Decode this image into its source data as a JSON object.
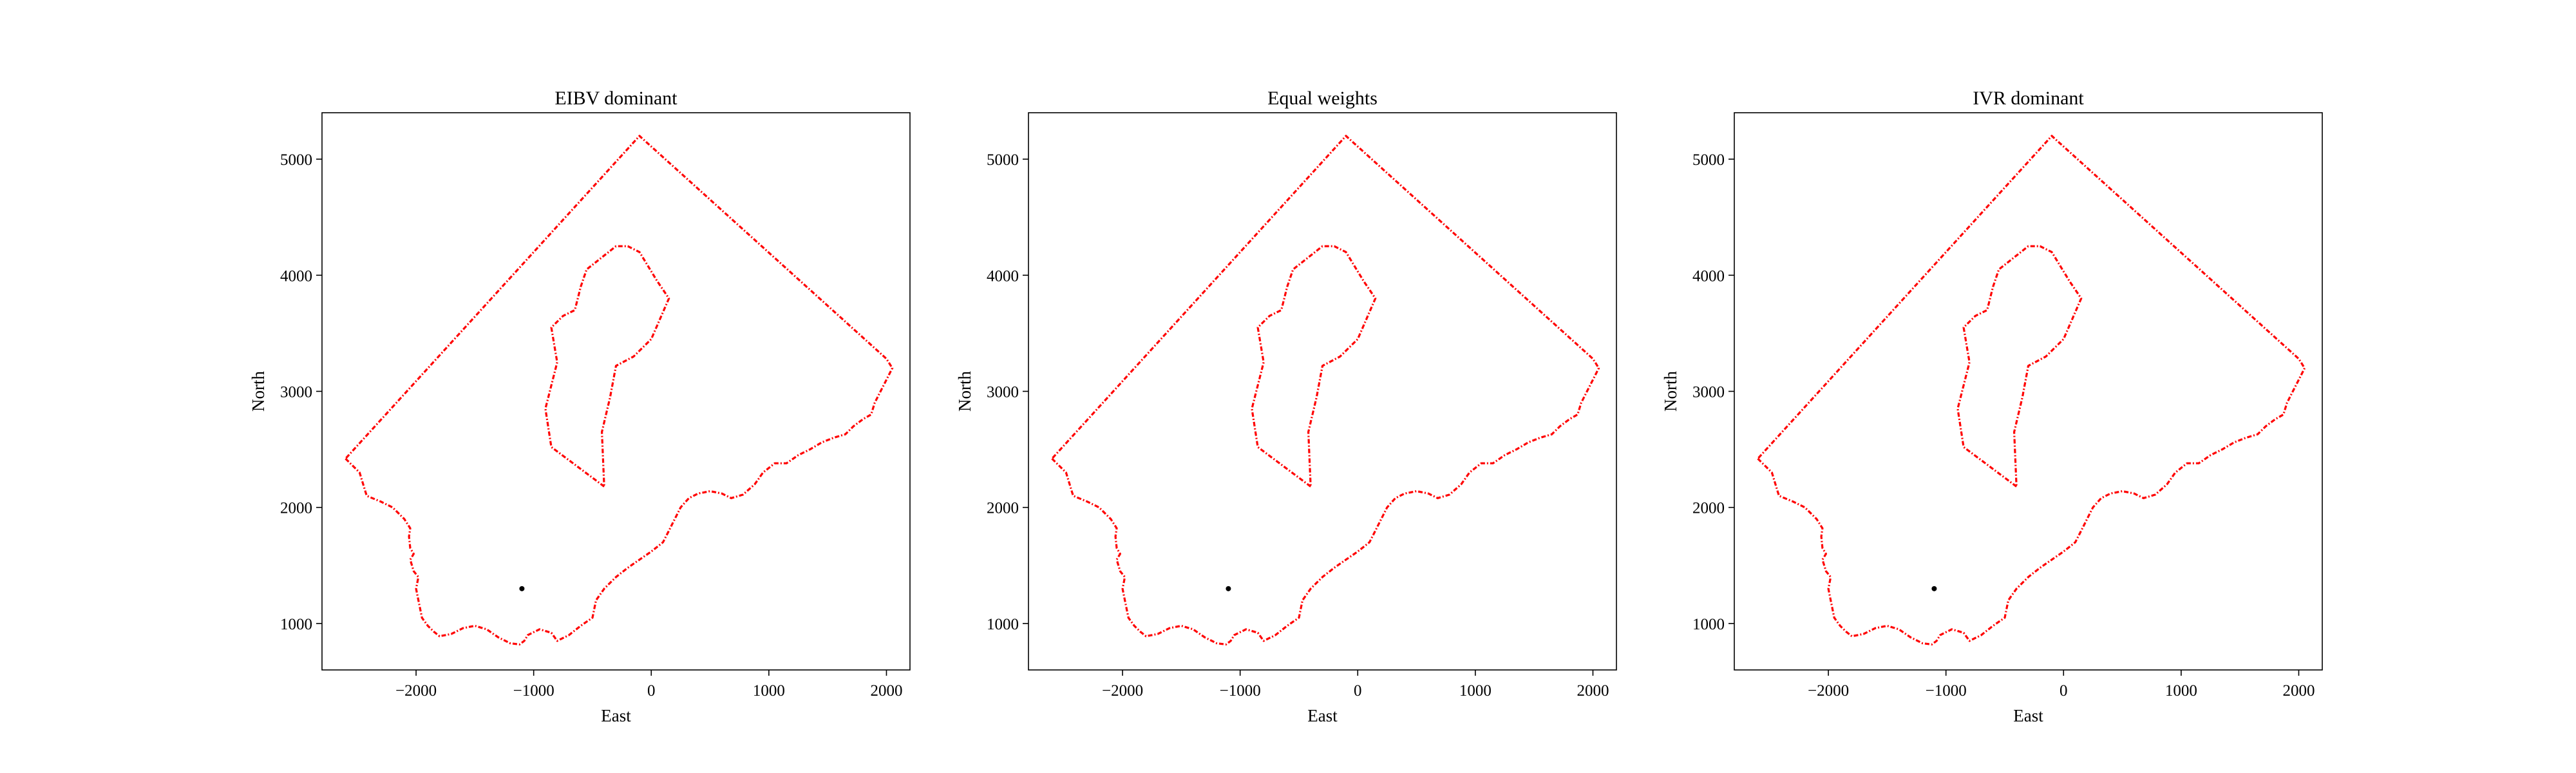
{
  "chart_data": [
    {
      "type": "line",
      "title": "EIBV dominant",
      "xlabel": "East",
      "ylabel": "North",
      "xlim": [
        -2800,
        2200
      ],
      "ylim": [
        600,
        5400
      ],
      "xticks": [
        -2000,
        -1000,
        0,
        1000,
        2000
      ],
      "xtick_labels": [
        "−2000",
        "−1000",
        "0",
        "1000",
        "2000"
      ],
      "yticks": [
        1000,
        2000,
        3000,
        4000,
        5000
      ],
      "ytick_labels": [
        "1000",
        "2000",
        "3000",
        "4000",
        "5000"
      ],
      "grid": false,
      "point": {
        "x": -1100,
        "y": 1300
      }
    },
    {
      "type": "line",
      "title": "Equal weights",
      "xlabel": "East",
      "ylabel": "North",
      "xlim": [
        -2800,
        2200
      ],
      "ylim": [
        600,
        5400
      ],
      "xticks": [
        -2000,
        -1000,
        0,
        1000,
        2000
      ],
      "xtick_labels": [
        "−2000",
        "−1000",
        "0",
        "1000",
        "2000"
      ],
      "yticks": [
        1000,
        2000,
        3000,
        4000,
        5000
      ],
      "ytick_labels": [
        "1000",
        "2000",
        "3000",
        "4000",
        "5000"
      ],
      "grid": false,
      "point": {
        "x": -1100,
        "y": 1300
      }
    },
    {
      "type": "line",
      "title": "IVR dominant",
      "xlabel": "East",
      "ylabel": "North",
      "xlim": [
        -2800,
        2200
      ],
      "ylim": [
        600,
        5400
      ],
      "xticks": [
        -2000,
        -1000,
        0,
        1000,
        2000
      ],
      "xtick_labels": [
        "−2000",
        "−1000",
        "0",
        "1000",
        "2000"
      ],
      "yticks": [
        1000,
        2000,
        3000,
        4000,
        5000
      ],
      "ytick_labels": [
        "1000",
        "2000",
        "3000",
        "4000",
        "5000"
      ],
      "grid": false,
      "point": {
        "x": -1100,
        "y": 1300
      }
    }
  ],
  "shared_boundaries": {
    "outer": [
      [
        -2600,
        2420
      ],
      [
        -2480,
        2300
      ],
      [
        -2450,
        2200
      ],
      [
        -2420,
        2100
      ],
      [
        -2300,
        2050
      ],
      [
        -2200,
        2000
      ],
      [
        -2150,
        1950
      ],
      [
        -2100,
        1900
      ],
      [
        -2050,
        1820
      ],
      [
        -2060,
        1750
      ],
      [
        -2050,
        1650
      ],
      [
        -2020,
        1600
      ],
      [
        -2050,
        1550
      ],
      [
        -2020,
        1450
      ],
      [
        -1980,
        1400
      ],
      [
        -2000,
        1300
      ],
      [
        -1980,
        1200
      ],
      [
        -1950,
        1050
      ],
      [
        -1900,
        980
      ],
      [
        -1850,
        930
      ],
      [
        -1800,
        890
      ],
      [
        -1700,
        910
      ],
      [
        -1600,
        960
      ],
      [
        -1500,
        980
      ],
      [
        -1400,
        950
      ],
      [
        -1300,
        880
      ],
      [
        -1200,
        830
      ],
      [
        -1120,
        820
      ],
      [
        -1080,
        850
      ],
      [
        -1050,
        900
      ],
      [
        -950,
        950
      ],
      [
        -850,
        920
      ],
      [
        -800,
        850
      ],
      [
        -700,
        900
      ],
      [
        -600,
        980
      ],
      [
        -500,
        1050
      ],
      [
        -470,
        1200
      ],
      [
        -400,
        1300
      ],
      [
        -300,
        1400
      ],
      [
        -200,
        1480
      ],
      [
        -100,
        1550
      ],
      [
        0,
        1620
      ],
      [
        100,
        1700
      ],
      [
        150,
        1800
      ],
      [
        200,
        1900
      ],
      [
        250,
        2000
      ],
      [
        320,
        2080
      ],
      [
        400,
        2120
      ],
      [
        500,
        2140
      ],
      [
        600,
        2120
      ],
      [
        680,
        2080
      ],
      [
        780,
        2110
      ],
      [
        880,
        2200
      ],
      [
        950,
        2300
      ],
      [
        1050,
        2380
      ],
      [
        1150,
        2380
      ],
      [
        1250,
        2450
      ],
      [
        1350,
        2500
      ],
      [
        1450,
        2560
      ],
      [
        1550,
        2600
      ],
      [
        1650,
        2630
      ],
      [
        1720,
        2700
      ],
      [
        1800,
        2760
      ],
      [
        1870,
        2800
      ],
      [
        1900,
        2900
      ],
      [
        1950,
        3000
      ],
      [
        2000,
        3100
      ],
      [
        2050,
        3200
      ],
      [
        2000,
        3280
      ],
      [
        -100,
        5200
      ],
      [
        -2600,
        2420
      ]
    ],
    "inner": [
      [
        -400,
        2180
      ],
      [
        -850,
        2520
      ],
      [
        -900,
        2850
      ],
      [
        -800,
        3250
      ],
      [
        -850,
        3550
      ],
      [
        -750,
        3650
      ],
      [
        -650,
        3700
      ],
      [
        -600,
        3900
      ],
      [
        -550,
        4050
      ],
      [
        -300,
        4250
      ],
      [
        -200,
        4250
      ],
      [
        -100,
        4200
      ],
      [
        50,
        3950
      ],
      [
        150,
        3800
      ],
      [
        0,
        3450
      ],
      [
        -150,
        3300
      ],
      [
        -300,
        3220
      ],
      [
        -350,
        2950
      ],
      [
        -420,
        2650
      ],
      [
        -400,
        2180
      ]
    ],
    "color": "#ff0000",
    "point_color": "#000000"
  }
}
